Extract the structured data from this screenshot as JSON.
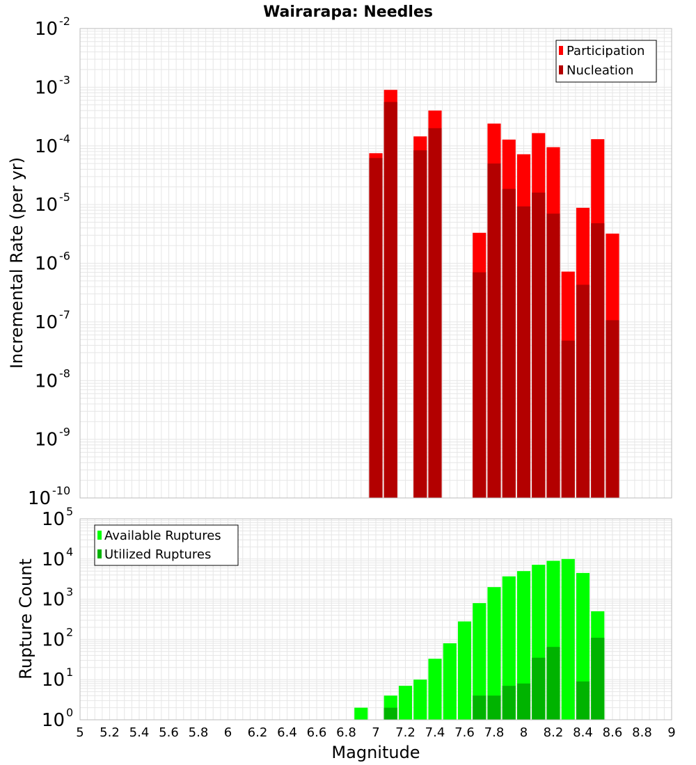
{
  "title": "Wairarapa: Needles",
  "colors": {
    "participation": "#ff0000",
    "nucleation": "#b30000",
    "available": "#00ff00",
    "utilized": "#00b300",
    "grid": "#e6e6e6",
    "frame": "#bbbbbb"
  },
  "chart_data": [
    {
      "type": "bar",
      "scale": "log",
      "title": "Wairarapa: Needles",
      "xlabel": "",
      "ylabel": "Incremental Rate (per yr)",
      "xlim": [
        5,
        9
      ],
      "ylim_exponents": [
        -10,
        -2
      ],
      "ytick_exponents": [
        -10,
        -9,
        -8,
        -7,
        -6,
        -5,
        -4,
        -3,
        -2
      ],
      "ytick_base": "10",
      "legend": "top-right",
      "series": [
        {
          "name": "Participation",
          "color": "#ff0000",
          "x": [
            7.0,
            7.1,
            7.3,
            7.4,
            7.7,
            7.8,
            7.9,
            8.0,
            8.1,
            8.2,
            8.3,
            8.4,
            8.5,
            8.6
          ],
          "values": [
            7.5e-05,
            0.0009,
            0.000145,
            0.0004,
            3.3e-06,
            0.00024,
            0.000128,
            7.2e-05,
            0.000165,
            9.5e-05,
            7.2e-07,
            8.8e-06,
            0.00013,
            3.2e-06
          ]
        },
        {
          "name": "Nucleation",
          "color": "#b30000",
          "x": [
            7.0,
            7.1,
            7.3,
            7.4,
            7.7,
            7.8,
            7.9,
            8.0,
            8.1,
            8.2,
            8.3,
            8.4,
            8.5,
            8.6
          ],
          "values": [
            6.2e-05,
            0.00056,
            8.4e-05,
            0.0002,
            7e-07,
            5e-05,
            1.85e-05,
            9.3e-06,
            1.6e-05,
            7e-06,
            4.8e-08,
            4.3e-07,
            4.8e-06,
            1.07e-07
          ]
        }
      ]
    },
    {
      "type": "bar",
      "scale": "log",
      "title": "",
      "xlabel": "Magnitude",
      "ylabel": "Rupture Count",
      "xlim": [
        5,
        9
      ],
      "ylim_exponents": [
        0,
        5
      ],
      "ytick_exponents": [
        0,
        1,
        2,
        3,
        4,
        5
      ],
      "ytick_base": "10",
      "xticks": [
        "5",
        "5.2",
        "5.4",
        "5.6",
        "5.8",
        "6",
        "6.2",
        "6.4",
        "6.6",
        "6.8",
        "7",
        "7.2",
        "7.4",
        "7.6",
        "7.8",
        "8",
        "8.2",
        "8.4",
        "8.6",
        "8.8",
        "9"
      ],
      "legend": "top-left",
      "series": [
        {
          "name": "Available Ruptures",
          "color": "#00ff00",
          "x": [
            6.9,
            7.0,
            7.1,
            7.2,
            7.3,
            7.4,
            7.5,
            7.6,
            7.7,
            7.8,
            7.9,
            8.0,
            8.1,
            8.2,
            8.3,
            8.4,
            8.5,
            8.6
          ],
          "values": [
            2,
            1,
            4,
            7,
            10,
            33,
            80,
            280,
            800,
            2000,
            3700,
            5000,
            7200,
            9000,
            10000,
            4500,
            500,
            1
          ]
        },
        {
          "name": "Utilized Ruptures",
          "color": "#00b300",
          "x": [
            7.0,
            7.1,
            7.3,
            7.4,
            7.7,
            7.8,
            7.9,
            8.0,
            8.1,
            8.2,
            8.3,
            8.4,
            8.5,
            8.6
          ],
          "values": [
            1,
            2,
            1,
            1,
            4,
            4,
            7,
            8,
            35,
            65,
            1,
            9,
            110,
            1
          ]
        }
      ]
    }
  ]
}
